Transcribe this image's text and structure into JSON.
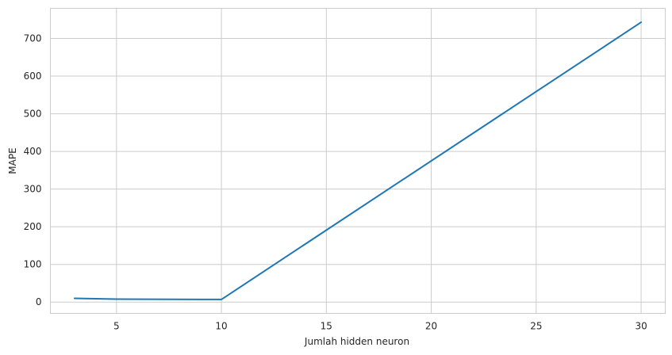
{
  "chart_data": {
    "type": "line",
    "xlabel": "Jumlah hidden neuron",
    "ylabel": "MAPE",
    "xlim": [
      1.85,
      31.15
    ],
    "ylim": [
      -30,
      780
    ],
    "xticks": [
      5,
      10,
      15,
      20,
      25,
      30
    ],
    "yticks": [
      0,
      100,
      200,
      300,
      400,
      500,
      600,
      700
    ],
    "grid": true,
    "series": [
      {
        "color": "#1f77b4",
        "x": [
          3,
          5,
          10,
          30
        ],
        "y": [
          10,
          8,
          7,
          743
        ]
      }
    ]
  }
}
